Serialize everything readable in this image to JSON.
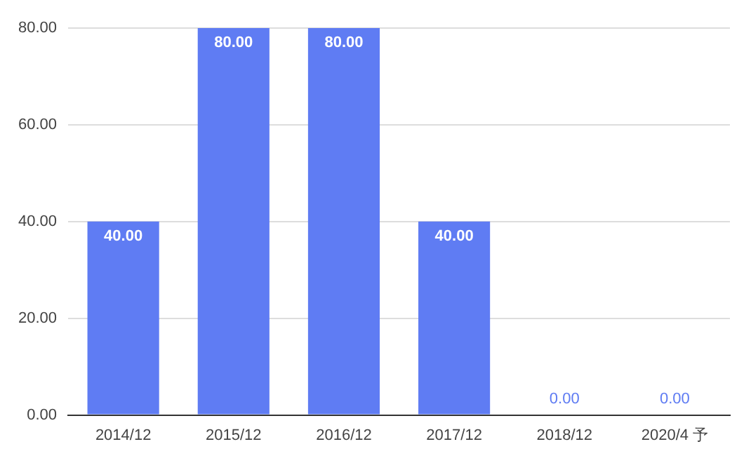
{
  "chart_data": {
    "type": "bar",
    "categories": [
      "2014/12",
      "2015/12",
      "2016/12",
      "2017/12",
      "2018/12",
      "2020/4 予"
    ],
    "values": [
      40,
      80,
      80,
      40,
      0,
      0
    ],
    "value_labels": [
      "40.00",
      "80.00",
      "80.00",
      "40.00",
      "0.00",
      "0.00"
    ],
    "color": "#5f7cf3",
    "ylim": [
      0,
      80
    ],
    "yticks": [
      {
        "value": 0,
        "label": "0.00"
      },
      {
        "value": 20,
        "label": "20.00"
      },
      {
        "value": 40,
        "label": "40.00"
      },
      {
        "value": 60,
        "label": "60.00"
      },
      {
        "value": 80,
        "label": "80.00"
      }
    ],
    "grid": "y"
  }
}
